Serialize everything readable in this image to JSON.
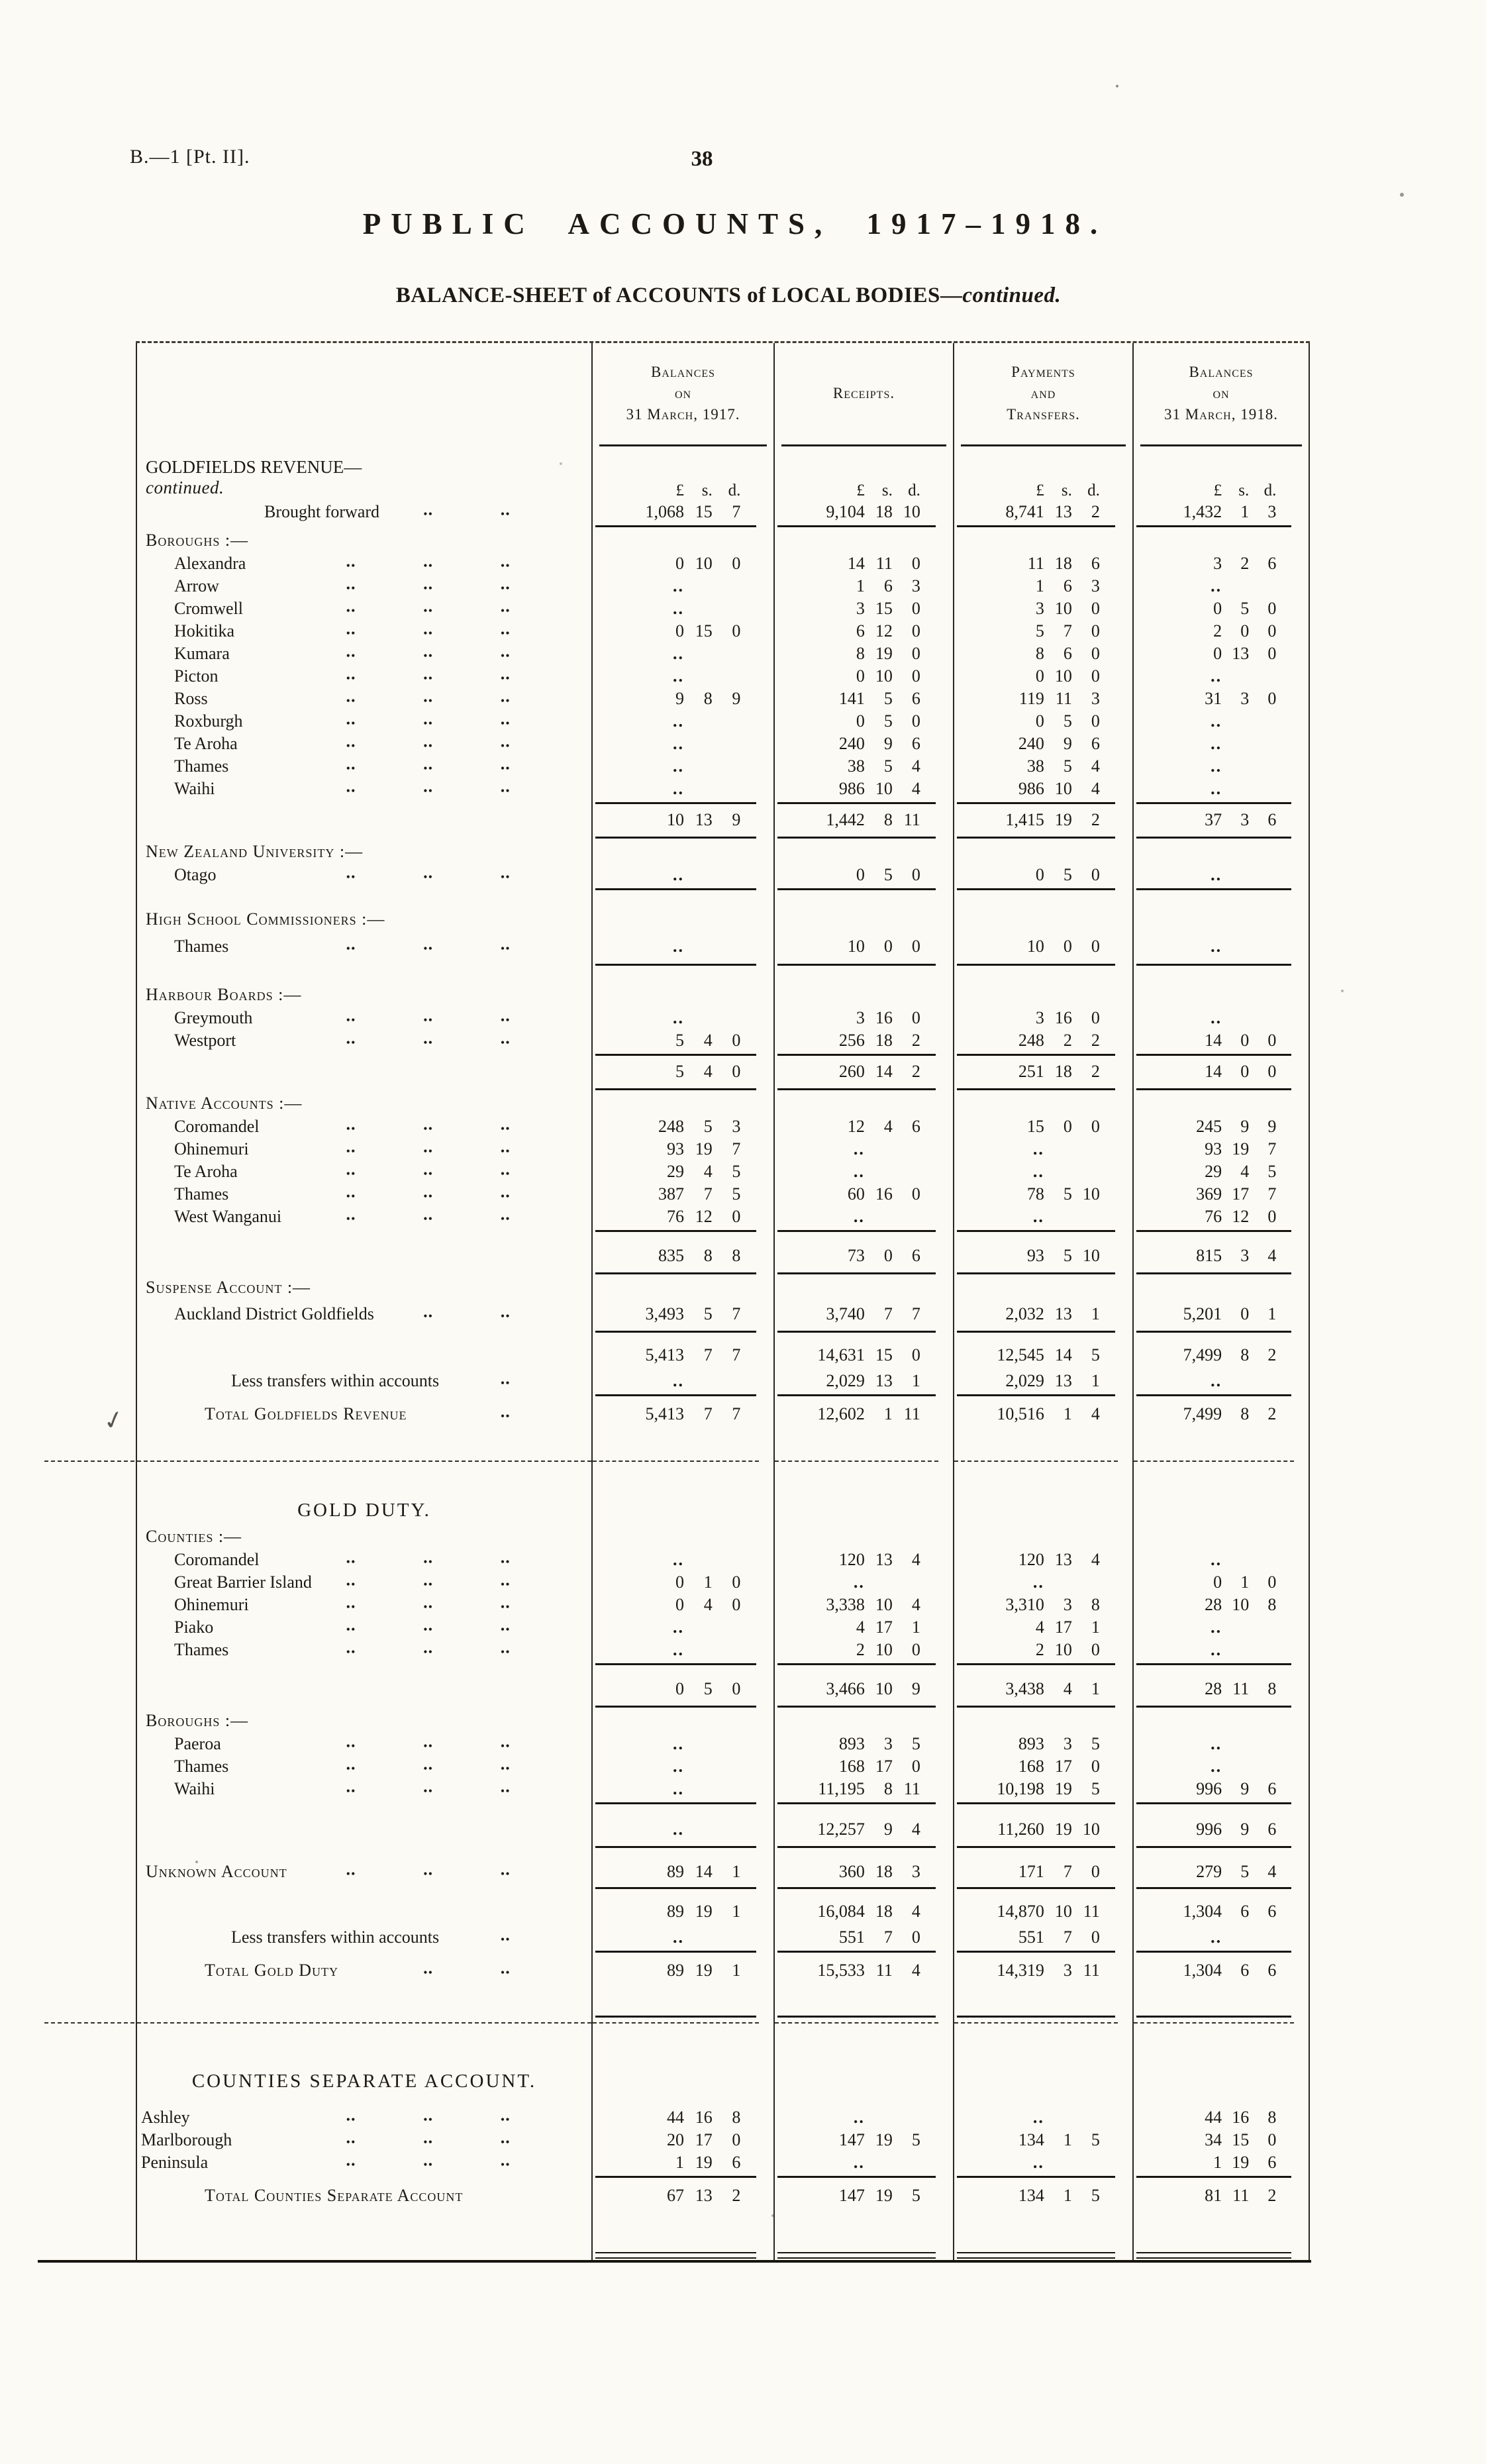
{
  "page": {
    "doc_ref": "B.—1 [Pt. II].",
    "page_number": "38",
    "title": "PUBLIC ACCOUNTS, 1917–1918.",
    "subtitle": "BALANCE-SHEET of ACCOUNTS of LOCAL BODIES—",
    "subtitle_em": "continued.",
    "pen_mark": "✓"
  },
  "table": {
    "currency": [
      "£",
      "s.",
      "d."
    ],
    "cols": [
      {
        "lines": [
          "Balances",
          "on",
          "31 March, 1917."
        ]
      },
      {
        "lines": [
          "Receipts."
        ]
      },
      {
        "lines": [
          "Payments",
          "and",
          "Transfers."
        ]
      },
      {
        "lines": [
          "Balances",
          "on",
          "31 March, 1918."
        ]
      }
    ],
    "rows": [
      {
        "t": "head"
      },
      {
        "t": "cur",
        "l": "GOLDFIELDS REVENUE—",
        "em": "continued.",
        "ind": 0
      },
      {
        "t": "row",
        "l": "Brought forward",
        "ind": 4,
        "dots": 2,
        "v": [
          "1,068 15 7",
          "9,104 18 10",
          "8,741 13 2",
          "1,432 1 3"
        ]
      },
      {
        "t": "rule"
      },
      {
        "t": "grp",
        "l": "Boroughs :—",
        "sc": true,
        "ind": 0
      },
      {
        "t": "row",
        "l": "Alexandra",
        "ind": 1,
        "dots": 3,
        "v": [
          "0 10 0",
          "14 11 0",
          "11 18 6",
          "3 2 6"
        ]
      },
      {
        "t": "row",
        "l": "Arrow",
        "ind": 1,
        "dots": 3,
        "v": [
          "..",
          "1 6 3",
          "1 6 3",
          ".."
        ]
      },
      {
        "t": "row",
        "l": "Cromwell",
        "ind": 1,
        "dots": 3,
        "v": [
          "..",
          "3 15 0",
          "3 10 0",
          "0 5 0"
        ]
      },
      {
        "t": "row",
        "l": "Hokitika",
        "ind": 1,
        "dots": 3,
        "v": [
          "0 15 0",
          "6 12 0",
          "5 7 0",
          "2 0 0"
        ]
      },
      {
        "t": "row",
        "l": "Kumara",
        "ind": 1,
        "dots": 3,
        "v": [
          "..",
          "8 19 0",
          "8 6 0",
          "0 13 0"
        ]
      },
      {
        "t": "row",
        "l": "Picton",
        "ind": 1,
        "dots": 3,
        "v": [
          "..",
          "0 10 0",
          "0 10 0",
          ".."
        ]
      },
      {
        "t": "row",
        "l": "Ross",
        "ind": 1,
        "dots": 3,
        "v": [
          "9 8 9",
          "141 5 6",
          "119 11 3",
          "31 3 0"
        ]
      },
      {
        "t": "row",
        "l": "Roxburgh",
        "ind": 1,
        "dots": 3,
        "v": [
          "..",
          "0 5 0",
          "0 5 0",
          ".."
        ]
      },
      {
        "t": "row",
        "l": "Te Aroha",
        "ind": 1,
        "dots": 3,
        "v": [
          "..",
          "240 9 6",
          "240 9 6",
          ".."
        ]
      },
      {
        "t": "row",
        "l": "Thames",
        "ind": 1,
        "dots": 3,
        "v": [
          "..",
          "38 5 4",
          "38 5 4",
          ".."
        ]
      },
      {
        "t": "row",
        "l": "Waihi",
        "ind": 1,
        "dots": 3,
        "v": [
          "..",
          "986 10 4",
          "986 10 4",
          ".."
        ]
      },
      {
        "t": "rule"
      },
      {
        "t": "sub",
        "v": [
          "10 13 9",
          "1,442 8 11",
          "1,415 19 2",
          "37 3 6"
        ]
      },
      {
        "t": "rule"
      },
      {
        "t": "grp",
        "l": "New Zealand University :—",
        "sc": true,
        "ind": 0
      },
      {
        "t": "row",
        "l": "Otago",
        "ind": 1,
        "dots": 3,
        "v": [
          "..",
          "0 5 0",
          "0 5 0",
          ".."
        ]
      },
      {
        "t": "rule"
      },
      {
        "t": "sp",
        "h": 24
      },
      {
        "t": "grp",
        "l": "High School Commissioners :—",
        "sc": true,
        "ind": 0
      },
      {
        "t": "row",
        "l": "Thames",
        "ind": 1,
        "dots": 3,
        "v": [
          "..",
          "10 0 0",
          "10 0 0",
          ".."
        ],
        "h": 46
      },
      {
        "t": "rule"
      },
      {
        "t": "sp",
        "h": 24
      },
      {
        "t": "grp",
        "l": "Harbour Boards :—",
        "sc": true,
        "ind": 0
      },
      {
        "t": "row",
        "l": "Greymouth",
        "ind": 1,
        "dots": 3,
        "v": [
          "..",
          "3 16 0",
          "3 16 0",
          ".."
        ]
      },
      {
        "t": "row",
        "l": "Westport",
        "ind": 1,
        "dots": 3,
        "v": [
          "5 4 0",
          "256 18 2",
          "248 2 2",
          "14 0 0"
        ]
      },
      {
        "t": "rule"
      },
      {
        "t": "sub",
        "v": [
          "5 4 0",
          "260 14 2",
          "251 18 2",
          "14 0 0"
        ]
      },
      {
        "t": "rule"
      },
      {
        "t": "grp",
        "l": "Native Accounts :—",
        "sc": true,
        "ind": 0
      },
      {
        "t": "row",
        "l": "Coromandel",
        "ind": 1,
        "dots": 3,
        "v": [
          "248 5 3",
          "12 4 6",
          "15 0 0",
          "245 9 9"
        ]
      },
      {
        "t": "row",
        "l": "Ohinemuri",
        "ind": 1,
        "dots": 3,
        "v": [
          "93 19 7",
          "..",
          "..",
          "93 19 7"
        ]
      },
      {
        "t": "row",
        "l": "Te Aroha",
        "ind": 1,
        "dots": 3,
        "v": [
          "29 4 5",
          "..",
          "..",
          "29 4 5"
        ]
      },
      {
        "t": "row",
        "l": "Thames",
        "ind": 1,
        "dots": 3,
        "v": [
          "387 7 5",
          "60 16 0",
          "78 5 10",
          "369 17 7"
        ]
      },
      {
        "t": "row",
        "l": "West Wanganui",
        "ind": 1,
        "dots": 3,
        "v": [
          "76 12 0",
          "..",
          "..",
          "76 12 0"
        ]
      },
      {
        "t": "rule"
      },
      {
        "t": "sp",
        "h": 12
      },
      {
        "t": "sub",
        "v": [
          "835 8 8",
          "73 0 6",
          "93 5 10",
          "815 3 4"
        ]
      },
      {
        "t": "rule"
      },
      {
        "t": "grp",
        "l": "Suspense Account :—",
        "sc": true,
        "ind": 0
      },
      {
        "t": "row",
        "l": "Auckland District Goldfields",
        "ind": 1,
        "dots": 2,
        "v": [
          "3,493 5 7",
          "3,740 7 7",
          "2,032 13 1",
          "5,201 0 1"
        ],
        "h": 44
      },
      {
        "t": "rule"
      },
      {
        "t": "sp",
        "h": 10
      },
      {
        "t": "sub",
        "v": [
          "5,413 7 7",
          "14,631 15 0",
          "12,545 14 5",
          "7,499 8 2"
        ]
      },
      {
        "t": "row",
        "l": "Less transfers within accounts",
        "ind": 3,
        "dots": 1,
        "v": [
          "..",
          "2,029 13 1",
          "2,029 13 1",
          ".."
        ]
      },
      {
        "t": "rule"
      },
      {
        "t": "tot",
        "l": "Total Goldfields Revenue",
        "sc": true,
        "ind": 2,
        "dots": 1,
        "v": [
          "5,413 7 7",
          "12,602 1 11",
          "10,516 1 4",
          "7,499 8 2"
        ]
      },
      {
        "t": "sp",
        "h": 40
      },
      {
        "t": "dashed"
      },
      {
        "t": "sp",
        "h": 46
      },
      {
        "t": "grp",
        "l": "GOLD DUTY.",
        "ctr": true,
        "h": 44
      },
      {
        "t": "grp",
        "l": "Counties :—",
        "sc": true,
        "ind": 0
      },
      {
        "t": "row",
        "l": "Coromandel",
        "ind": 1,
        "dots": 3,
        "v": [
          "..",
          "120 13 4",
          "120 13 4",
          ".."
        ]
      },
      {
        "t": "row",
        "l": "Great Barrier Island",
        "ind": 1,
        "dots": 3,
        "v": [
          "0 1 0",
          "..",
          "..",
          "0 1 0"
        ]
      },
      {
        "t": "row",
        "l": "Ohinemuri",
        "ind": 1,
        "dots": 3,
        "v": [
          "0 4 0",
          "3,338 10 4",
          "3,310 3 8",
          "28 10 8"
        ]
      },
      {
        "t": "row",
        "l": "Piako",
        "ind": 1,
        "dots": 3,
        "v": [
          "..",
          "4 17 1",
          "4 17 1",
          ".."
        ]
      },
      {
        "t": "row",
        "l": "Thames",
        "ind": 1,
        "dots": 3,
        "v": [
          "..",
          "2 10 0",
          "2 10 0",
          ".."
        ]
      },
      {
        "t": "rule"
      },
      {
        "t": "sp",
        "h": 12
      },
      {
        "t": "sub",
        "v": [
          "0 5 0",
          "3,466 10 9",
          "3,438 4 1",
          "28 11 8"
        ]
      },
      {
        "t": "rule"
      },
      {
        "t": "grp",
        "l": "Boroughs :—",
        "sc": true,
        "ind": 0
      },
      {
        "t": "row",
        "l": "Paeroa",
        "ind": 1,
        "dots": 3,
        "v": [
          "..",
          "893 3 5",
          "893 3 5",
          ".."
        ]
      },
      {
        "t": "row",
        "l": "Thames",
        "ind": 1,
        "dots": 3,
        "v": [
          "..",
          "168 17 0",
          "168 17 0",
          ".."
        ]
      },
      {
        "t": "row",
        "l": "Waihi",
        "ind": 1,
        "dots": 3,
        "v": [
          "..",
          "11,195 8 11",
          "10,198 19 5",
          "996 9 6"
        ]
      },
      {
        "t": "rule"
      },
      {
        "t": "sp",
        "h": 14
      },
      {
        "t": "sub",
        "v": [
          "..",
          "12,257 9 4",
          "11,260 19 10",
          "996 9 6"
        ]
      },
      {
        "t": "rule"
      },
      {
        "t": "sp",
        "h": 14
      },
      {
        "t": "row",
        "l": "Unknown Account",
        "sc": true,
        "ind": 0,
        "dots": 3,
        "v": [
          "89 14 1",
          "360 18 3",
          "171 7 0",
          "279 5 4"
        ],
        "h": 40
      },
      {
        "t": "rule"
      },
      {
        "t": "sp",
        "h": 10
      },
      {
        "t": "sub",
        "v": [
          "89 19 1",
          "16,084 18 4",
          "14,870 10 11",
          "1,304 6 6"
        ]
      },
      {
        "t": "row",
        "l": "Less transfers within accounts",
        "ind": 3,
        "dots": 1,
        "v": [
          "..",
          "551 7 0",
          "551 7 0",
          ".."
        ]
      },
      {
        "t": "rule"
      },
      {
        "t": "tot",
        "l": "Total Gold Duty",
        "sc": true,
        "ind": 2,
        "dots": 2,
        "v": [
          "89 19 1",
          "15,533 11 4",
          "14,319 3 11",
          "1,304 6 6"
        ]
      },
      {
        "t": "sp",
        "h": 40
      },
      {
        "t": "rule"
      },
      {
        "t": "dashed"
      },
      {
        "t": "sp",
        "h": 58
      },
      {
        "t": "grp",
        "l": "COUNTIES SEPARATE ACCOUNT.",
        "ctr": true,
        "h": 48
      },
      {
        "t": "sp",
        "h": 14
      },
      {
        "t": "row",
        "l": "Ashley",
        "ind": 5,
        "dots": 3,
        "v": [
          "44 16 8",
          "..",
          "..",
          "44 16 8"
        ]
      },
      {
        "t": "row",
        "l": "Marlborough",
        "ind": 5,
        "dots": 3,
        "v": [
          "20 17 0",
          "147 19 5",
          "134 1 5",
          "34 15 0"
        ]
      },
      {
        "t": "row",
        "l": "Peninsula",
        "ind": 5,
        "dots": 3,
        "v": [
          "1 19 6",
          "..",
          "..",
          "1 19 6"
        ]
      },
      {
        "t": "rule"
      },
      {
        "t": "tot",
        "l": "Total Counties Separate Account",
        "sc": true,
        "ind": 2,
        "dots": 0,
        "v": [
          "67 13 2",
          "147 19 5",
          "134 1 5",
          "81 11 2"
        ]
      },
      {
        "t": "sp",
        "h": 54
      },
      {
        "t": "end"
      }
    ]
  }
}
